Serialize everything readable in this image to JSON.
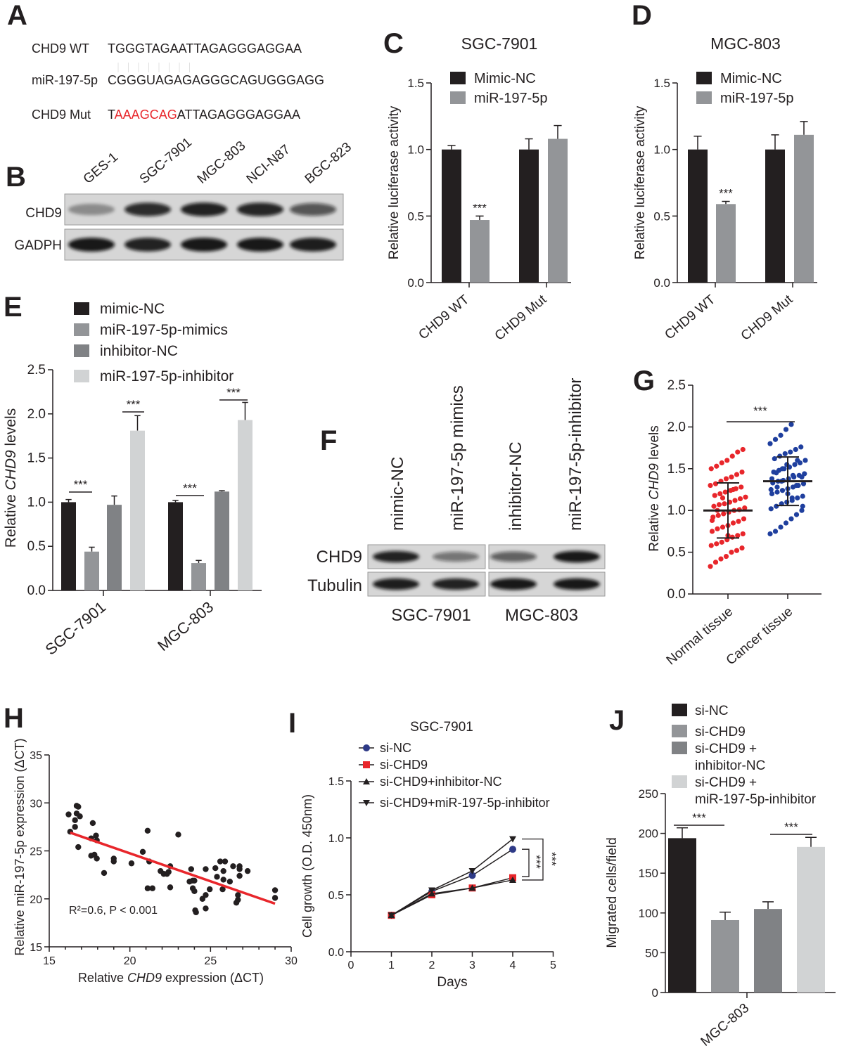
{
  "panel_labels": [
    "A",
    "B",
    "C",
    "D",
    "E",
    "F",
    "G",
    "H",
    "I",
    "J"
  ],
  "panelA": {
    "rows": [
      {
        "label": "CHD9 WT",
        "seq": "TGGGTAGAATTAGAGGGAGGAA"
      },
      {
        "label": "miR-197-5p",
        "seq": "CGGGUAGAGAGGGCAGUGGGAGG"
      },
      {
        "label": "CHD9 Mut",
        "seq_prefix": "T",
        "seq_mut": "AAAGCAG",
        "seq_suffix": "ATTAGAGGGAGGAA"
      }
    ],
    "mut_color": "#e8262b"
  },
  "panelB": {
    "lanes": [
      "GES-1",
      "SGC-7901",
      "MGC-803",
      "NCI-N87",
      "BGC-823"
    ],
    "rows": [
      {
        "label": "CHD9",
        "band_intensity": [
          0.35,
          0.85,
          0.9,
          0.88,
          0.65
        ]
      },
      {
        "label": "GADPH",
        "band_intensity": [
          0.95,
          0.9,
          0.95,
          0.95,
          0.92
        ]
      }
    ]
  },
  "panelF": {
    "columns": [
      "mimic-NC",
      "miR-197-5p mimics",
      "inhibitor-NC",
      "miR-197-5p-inhibitor"
    ],
    "rows": [
      {
        "label": "CHD9",
        "band_intensity": [
          0.9,
          0.5,
          0.6,
          0.95
        ]
      },
      {
        "label": "Tubulin",
        "band_intensity": [
          0.92,
          0.9,
          0.95,
          0.95
        ]
      }
    ],
    "cell_lines": [
      "SGC-7901",
      "MGC-803"
    ]
  },
  "chart_data": [
    {
      "panel": "C",
      "type": "bar",
      "title": "SGC-7901",
      "ylabel": "Relative luciferase activity",
      "ylim": [
        0,
        1.5
      ],
      "yticks": [
        0,
        0.5,
        1.0,
        1.5
      ],
      "ytick_labels": [
        "0.0",
        "0.5",
        "1.0",
        "1.5"
      ],
      "categories": [
        "CHD9 WT",
        "CHD9 Mut"
      ],
      "series": [
        {
          "name": "Mimic-NC",
          "color": "#231f20",
          "values": [
            1.0,
            1.0
          ],
          "errors": [
            0.03,
            0.08
          ]
        },
        {
          "name": "miR-197-5p",
          "color": "#939598",
          "values": [
            0.47,
            1.08
          ],
          "errors": [
            0.03,
            0.1
          ]
        }
      ],
      "significance": [
        {
          "category": "CHD9 WT",
          "label": "***"
        }
      ],
      "legend": "top"
    },
    {
      "panel": "D",
      "type": "bar",
      "title": "MGC-803",
      "ylabel": "Relative luciferase activity",
      "ylim": [
        0,
        1.5
      ],
      "yticks": [
        0,
        0.5,
        1.0,
        1.5
      ],
      "ytick_labels": [
        "0.0",
        "0.5",
        "1.0",
        "1.5"
      ],
      "categories": [
        "CHD9 WT",
        "CHD9 Mut"
      ],
      "series": [
        {
          "name": "Mimic-NC",
          "color": "#231f20",
          "values": [
            1.0,
            1.0
          ],
          "errors": [
            0.1,
            0.11
          ]
        },
        {
          "name": "miR-197-5p",
          "color": "#939598",
          "values": [
            0.59,
            1.11
          ],
          "errors": [
            0.02,
            0.1
          ]
        }
      ],
      "significance": [
        {
          "category": "CHD9 WT",
          "label": "***"
        }
      ],
      "legend": "top"
    },
    {
      "panel": "E",
      "type": "bar",
      "ylabel": {
        "pre": "Relative ",
        "it": "CHD9",
        "post": " levels"
      },
      "ylim": [
        0,
        2.5
      ],
      "yticks": [
        0,
        0.5,
        1.0,
        1.5,
        2.0,
        2.5
      ],
      "ytick_labels": [
        "0.0",
        "0.5",
        "1.0",
        "1.5",
        "2.0",
        "2.5"
      ],
      "categories": [
        "SGC-7901",
        "MGC-803"
      ],
      "series": [
        {
          "name": "mimic-NC",
          "color": "#231f20",
          "values": [
            1.0,
            1.0
          ],
          "errors": [
            0.03,
            0.02
          ]
        },
        {
          "name": "miR-197-5p-mimics",
          "color": "#939598",
          "values": [
            0.44,
            0.31
          ],
          "errors": [
            0.05,
            0.03
          ]
        },
        {
          "name": "inhibitor-NC",
          "color": "#808285",
          "values": [
            0.97,
            1.12
          ],
          "errors": [
            0.1,
            0.01
          ]
        },
        {
          "name": "miR-197-5p-inhibitor",
          "color": "#d1d3d4",
          "values": [
            1.81,
            1.93
          ],
          "errors": [
            0.17,
            0.2
          ]
        }
      ],
      "significance": [
        {
          "category": "SGC-7901",
          "between": [
            "mimic-NC",
            "miR-197-5p-mimics"
          ],
          "label": "***"
        },
        {
          "category": "SGC-7901",
          "between": [
            "inhibitor-NC",
            "miR-197-5p-inhibitor"
          ],
          "label": "***"
        },
        {
          "category": "MGC-803",
          "between": [
            "mimic-NC",
            "miR-197-5p-mimics"
          ],
          "label": "***"
        },
        {
          "category": "MGC-803",
          "between": [
            "inhibitor-NC",
            "miR-197-5p-inhibitor"
          ],
          "label": "***"
        }
      ],
      "legend": "top-left"
    },
    {
      "panel": "G",
      "type": "scatter",
      "ylabel": {
        "pre": "Relative ",
        "it": "CHD9",
        "post": " levels"
      },
      "ylim": [
        0,
        2.5
      ],
      "yticks": [
        0,
        0.5,
        1.0,
        1.5,
        2.0,
        2.5
      ],
      "ytick_labels": [
        "0.0",
        "0.5",
        "1.0",
        "1.5",
        "2.0",
        "2.5"
      ],
      "categories": [
        "Normal tissue",
        "Cancer tissue"
      ],
      "series": [
        {
          "name": "Normal tissue",
          "color": "#e8262b",
          "mean": 1.0,
          "sd": 0.33,
          "values": [
            0.33,
            0.38,
            0.42,
            0.45,
            0.5,
            0.52,
            0.55,
            0.58,
            0.6,
            0.62,
            0.65,
            0.68,
            0.7,
            0.72,
            0.75,
            0.78,
            0.8,
            0.82,
            0.85,
            0.87,
            0.9,
            0.92,
            0.94,
            0.96,
            0.98,
            1.0,
            1.01,
            1.03,
            1.05,
            1.07,
            1.08,
            1.1,
            1.12,
            1.14,
            1.16,
            1.18,
            1.2,
            1.22,
            1.24,
            1.26,
            1.28,
            1.3,
            1.32,
            1.35,
            1.38,
            1.4,
            1.43,
            1.46,
            1.5,
            1.53,
            1.57,
            1.6,
            1.65,
            1.7,
            1.73,
            0.88,
            1.0,
            1.15,
            0.7,
            1.25
          ]
        },
        {
          "name": "Cancer tissue",
          "color": "#1f3f9e",
          "mean": 1.35,
          "sd": 0.29,
          "values": [
            0.72,
            0.75,
            0.8,
            0.85,
            0.9,
            0.95,
            1.0,
            1.02,
            1.05,
            1.08,
            1.1,
            1.12,
            1.15,
            1.17,
            1.2,
            1.22,
            1.24,
            1.26,
            1.28,
            1.3,
            1.32,
            1.33,
            1.35,
            1.36,
            1.38,
            1.4,
            1.42,
            1.44,
            1.46,
            1.48,
            1.5,
            1.52,
            1.55,
            1.57,
            1.6,
            1.62,
            1.65,
            1.68,
            1.7,
            1.73,
            1.76,
            1.8,
            1.85,
            1.9,
            1.97,
            2.03,
            1.3,
            1.4,
            1.25,
            1.45,
            1.35,
            1.55,
            1.15,
            1.6,
            1.05,
            1.38,
            1.28,
            1.5,
            1.2,
            1.42
          ]
        }
      ],
      "significance": [
        {
          "between": [
            "Normal tissue",
            "Cancer tissue"
          ],
          "label": "***"
        }
      ]
    },
    {
      "panel": "H",
      "type": "scatter",
      "xlabel": {
        "pre": "Relative ",
        "it": "CHD9",
        "post": " expression (ΔCT)"
      },
      "ylabel": "Relative miR-197-5p expression (ΔCT)",
      "xlim": [
        15,
        30
      ],
      "xticks": [
        15,
        20,
        25,
        30
      ],
      "xtick_labels": [
        "15",
        "20",
        "25",
        "30"
      ],
      "ylim": [
        15,
        35
      ],
      "yticks": [
        15,
        20,
        25,
        30,
        35
      ],
      "ytick_labels": [
        "15",
        "20",
        "25",
        "30",
        "35"
      ],
      "annotation": "R²=0.6, P < 0.001",
      "fit_line": {
        "color": "#e8262b",
        "from": [
          16.3,
          26.9
        ],
        "to": [
          29.0,
          19.5
        ]
      },
      "points": [
        [
          16.2,
          28.8
        ],
        [
          16.3,
          27.0
        ],
        [
          16.6,
          27.5
        ],
        [
          16.6,
          28.2
        ],
        [
          16.7,
          29.7
        ],
        [
          16.8,
          29.6
        ],
        [
          16.7,
          28.9
        ],
        [
          16.9,
          28.6
        ],
        [
          16.8,
          25.4
        ],
        [
          17.7,
          27.9
        ],
        [
          17.6,
          26.3
        ],
        [
          17.9,
          26.6
        ],
        [
          17.95,
          26.1
        ],
        [
          17.6,
          24.5
        ],
        [
          17.8,
          24.6
        ],
        [
          17.95,
          24.2
        ],
        [
          18.4,
          22.7
        ],
        [
          19.0,
          24.2
        ],
        [
          19.0,
          23.9
        ],
        [
          20.1,
          23.7
        ],
        [
          20.8,
          24.9
        ],
        [
          21.1,
          27.1
        ],
        [
          21.2,
          23.9
        ],
        [
          21.1,
          21.1
        ],
        [
          21.4,
          21.1
        ],
        [
          21.9,
          22.9
        ],
        [
          22.1,
          22.6
        ],
        [
          22.3,
          22.6
        ],
        [
          22.4,
          22.8
        ],
        [
          22.5,
          23.4
        ],
        [
          22.5,
          21.2
        ],
        [
          23.0,
          26.7
        ],
        [
          23.8,
          23.1
        ],
        [
          23.7,
          21.8
        ],
        [
          23.9,
          21.9
        ],
        [
          23.9,
          21.1
        ],
        [
          24.0,
          20.8
        ],
        [
          24.0,
          21.9
        ],
        [
          24.05,
          18.8
        ],
        [
          24.1,
          18.6
        ],
        [
          24.5,
          20.0
        ],
        [
          24.7,
          20.4
        ],
        [
          24.7,
          23.1
        ],
        [
          24.7,
          19.0
        ],
        [
          24.95,
          21.0
        ],
        [
          25.3,
          23.2
        ],
        [
          25.4,
          22.3
        ],
        [
          25.6,
          23.9
        ],
        [
          25.8,
          22.9
        ],
        [
          25.8,
          22.0
        ],
        [
          25.75,
          21.0
        ],
        [
          25.9,
          23.9
        ],
        [
          26.2,
          21.8
        ],
        [
          26.4,
          23.4
        ],
        [
          26.7,
          20.4
        ],
        [
          26.7,
          19.9
        ],
        [
          26.6,
          19.6
        ],
        [
          26.8,
          23.4
        ],
        [
          26.8,
          23.1
        ],
        [
          26.8,
          22.4
        ],
        [
          27.3,
          22.9
        ],
        [
          29.0,
          20.9
        ],
        [
          29.0,
          20.1
        ]
      ]
    },
    {
      "panel": "I",
      "type": "line",
      "title": "SGC-7901",
      "xlabel": "Days",
      "ylabel": "Cell growth (O.D. 450nm)",
      "xlim": [
        0,
        5
      ],
      "xticks": [
        0,
        1,
        2,
        3,
        4,
        5
      ],
      "xtick_labels": [
        "0",
        "1",
        "2",
        "3",
        "4",
        "5"
      ],
      "ylim": [
        0,
        1.5
      ],
      "yticks": [
        0,
        0.5,
        1.0,
        1.5
      ],
      "ytick_labels": [
        "0.0",
        "0.5",
        "1.0",
        "1.5"
      ],
      "x": [
        1,
        2,
        3,
        4
      ],
      "series": [
        {
          "name": "si-NC",
          "color": "#2e3a87",
          "marker": "circle",
          "values": [
            0.32,
            0.53,
            0.67,
            0.9
          ],
          "errors": [
            0,
            0.01,
            0.01,
            0.03
          ]
        },
        {
          "name": "si-CHD9",
          "color": "#e8262b",
          "marker": "square",
          "values": [
            0.32,
            0.5,
            0.56,
            0.65
          ],
          "errors": [
            0,
            0.01,
            0.01,
            0.01
          ]
        },
        {
          "name": "si-CHD9+inhibitor-NC",
          "color": "#231f20",
          "marker": "triangle-up",
          "values": [
            0.32,
            0.51,
            0.56,
            0.63
          ],
          "errors": [
            0,
            0.01,
            0.01,
            0.01
          ]
        },
        {
          "name": "si-CHD9+miR-197-5p-inhibitor",
          "color": "#231f20",
          "marker": "triangle-down",
          "values": [
            0.32,
            0.54,
            0.71,
            0.99
          ],
          "errors": [
            0,
            0.01,
            0.01,
            0.02
          ]
        }
      ],
      "significance": [
        {
          "between": [
            "si-NC",
            "si-CHD9"
          ],
          "label": "***"
        },
        {
          "between": [
            "si-CHD9+miR-197-5p-inhibitor",
            "si-CHD9+inhibitor-NC"
          ],
          "label": "***"
        }
      ],
      "legend": "top-left"
    },
    {
      "panel": "J",
      "type": "bar",
      "ylabel": "Migrated cells/field",
      "ylim": [
        0,
        250
      ],
      "yticks": [
        0,
        50,
        100,
        150,
        200,
        250
      ],
      "ytick_labels": [
        "0",
        "50",
        "100",
        "150",
        "200",
        "250"
      ],
      "categories": [
        "MGC-803"
      ],
      "series": [
        {
          "name": "si-NC",
          "legend_lines": [
            "si-NC"
          ],
          "color": "#231f20",
          "values": [
            194
          ],
          "errors": [
            13
          ]
        },
        {
          "name": "si-CHD9",
          "legend_lines": [
            "si-CHD9"
          ],
          "color": "#939598",
          "values": [
            91
          ],
          "errors": [
            10
          ]
        },
        {
          "name": "si-CHD9 + inhibitor-NC",
          "legend_lines": [
            "si-CHD9 +",
            "inhibitor-NC"
          ],
          "color": "#808285",
          "values": [
            105
          ],
          "errors": [
            9
          ]
        },
        {
          "name": "si-CHD9 + miR-197-5p-inhibitor",
          "legend_lines": [
            "si-CHD9 +",
            "miR-197-5p-inhibitor"
          ],
          "color": "#d1d3d4",
          "values": [
            183
          ],
          "errors": [
            12
          ]
        }
      ],
      "significance": [
        {
          "between": [
            "si-NC",
            "si-CHD9"
          ],
          "label": "***"
        },
        {
          "between": [
            "si-CHD9 + inhibitor-NC",
            "si-CHD9 + miR-197-5p-inhibitor"
          ],
          "label": "***"
        }
      ],
      "legend": "top"
    }
  ]
}
